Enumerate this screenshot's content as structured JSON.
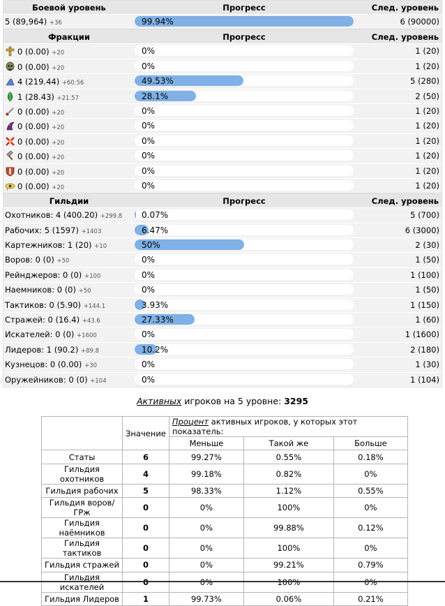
{
  "combat": {
    "headers": {
      "level": "Боевой уровень",
      "progress": "Прогресс",
      "next": "След. уровень"
    },
    "row": {
      "level": "5 (89,964)",
      "inc": "+36",
      "progress_text": "99.94%",
      "progress": 99.94,
      "next": "6 (90000)"
    }
  },
  "factions": {
    "headers": {
      "name": "Фракции",
      "progress": "Прогресс",
      "next": "След. уровень"
    },
    "rows": [
      {
        "icon": "knight-cross-icon",
        "level": "0 (0.00)",
        "inc": "+20",
        "progress_text": "0%",
        "progress": 0,
        "next": "1 (20)"
      },
      {
        "icon": "necromancer-skull-icon",
        "level": "0 (0.00)",
        "inc": "+20",
        "progress_text": "0%",
        "progress": 0,
        "next": "1 (20)"
      },
      {
        "icon": "wizard-hat-icon",
        "level": "4 (219.44)",
        "inc": "+60.56",
        "progress_text": "49.53%",
        "progress": 49.53,
        "next": "5 (280)"
      },
      {
        "icon": "elf-leaf-icon",
        "level": "1 (28.43)",
        "inc": "+21.57",
        "progress_text": "28.1%",
        "progress": 28.1,
        "next": "2 (50)"
      },
      {
        "icon": "barbarian-sword-icon",
        "level": "0 (0.00)",
        "inc": "+20",
        "progress_text": "0%",
        "progress": 0,
        "next": "1 (20)"
      },
      {
        "icon": "dark-elf-icon",
        "level": "0 (0.00)",
        "inc": "+20",
        "progress_text": "0%",
        "progress": 0,
        "next": "1 (20)"
      },
      {
        "icon": "demon-cross-icon",
        "level": "0 (0.00)",
        "inc": "+20",
        "progress_text": "0%",
        "progress": 0,
        "next": "1 (20)"
      },
      {
        "icon": "dwarf-hammer-icon",
        "level": "0 (0.00)",
        "inc": "+20",
        "progress_text": "0%",
        "progress": 0,
        "next": "1 (20)"
      },
      {
        "icon": "tribal-shield-icon",
        "level": "0 (0.00)",
        "inc": "+20",
        "progress_text": "0%",
        "progress": 0,
        "next": "1 (20)"
      },
      {
        "icon": "pharaoh-eye-icon",
        "level": "0 (0.00)",
        "inc": "+20",
        "progress_text": "0%",
        "progress": 0,
        "next": "1 (20)"
      }
    ]
  },
  "guilds": {
    "headers": {
      "name": "Гильдии",
      "progress": "Прогресс",
      "next": "След. уровень"
    },
    "rows": [
      {
        "name": "Охотников: 4 (400.20)",
        "inc": "+299.8",
        "progress_text": "0.07%",
        "progress": 0.07,
        "next": "5 (700)"
      },
      {
        "name": "Рабочих: 5 (1597)",
        "inc": "+1403",
        "progress_text": "6.47%",
        "progress": 6.47,
        "next": "6 (3000)"
      },
      {
        "name": "Картежников: 1 (20)",
        "inc": "+10",
        "progress_text": "50%",
        "progress": 50,
        "next": "2 (30)"
      },
      {
        "name": "Воров: 0 (0)",
        "inc": "+50",
        "progress_text": "0%",
        "progress": 0,
        "next": "1 (50)"
      },
      {
        "name": "Рейнджеров: 0 (0)",
        "inc": "+100",
        "progress_text": "0%",
        "progress": 0,
        "next": "1 (100)"
      },
      {
        "name": "Наемников: 0 (0)",
        "inc": "+50",
        "progress_text": "0%",
        "progress": 0,
        "next": "1 (50)"
      },
      {
        "name": "Тактиков: 0 (5.90)",
        "inc": "+144.1",
        "progress_text": "3.93%",
        "progress": 3.93,
        "next": "1 (150)"
      },
      {
        "name": "Стражей: 0 (16.4)",
        "inc": "+43.6",
        "progress_text": "27.33%",
        "progress": 27.33,
        "next": "1 (60)"
      },
      {
        "name": "Искателей: 0 (0)",
        "inc": "+1600",
        "progress_text": "0%",
        "progress": 0,
        "next": "1 (1600)"
      },
      {
        "name": "Лидеров: 1 (90.2)",
        "inc": "+89.8",
        "progress_text": "10.2%",
        "progress": 10.2,
        "next": "2 (180)"
      },
      {
        "name": "Кузнецов: 0 (0.00)",
        "inc": "+30",
        "progress_text": "0%",
        "progress": 0,
        "next": "1 (30)"
      },
      {
        "name": "Оружейников: 0 (0)",
        "inc": "+104",
        "progress_text": "0%",
        "progress": 0,
        "next": "1 (104)"
      }
    ]
  },
  "active": {
    "link": "Активных",
    "text": " игроков на 5 уровне: ",
    "count": "3295"
  },
  "stats": {
    "value_header": "Значение",
    "percent_link": "Процент",
    "percent_text": " активных игроков, у которых этот показатель:",
    "cols": [
      "Меньше",
      "Такой же",
      "Больше"
    ],
    "rows": [
      {
        "name": "Статы",
        "value": "6",
        "less": "99.27%",
        "same": "0.55%",
        "more": "0.18%"
      },
      {
        "name": "Гильдия охотников",
        "value": "4",
        "less": "99.18%",
        "same": "0.82%",
        "more": "0%"
      },
      {
        "name": "Гильдия рабочих",
        "value": "5",
        "less": "98.33%",
        "same": "1.12%",
        "more": "0.55%"
      },
      {
        "name": "Гильдия воров/ГРж",
        "value": "0",
        "less": "0%",
        "same": "100%",
        "more": "0%"
      },
      {
        "name": "Гильдия наёмников",
        "value": "0",
        "less": "0%",
        "same": "99.88%",
        "more": "0.12%"
      },
      {
        "name": "Гильдия тактиков",
        "value": "0",
        "less": "0%",
        "same": "100%",
        "more": "0%"
      },
      {
        "name": "Гильдия стражей",
        "value": "0",
        "less": "0%",
        "same": "99.21%",
        "more": "0.79%"
      },
      {
        "name": "Гильдия искателей",
        "value": "0",
        "less": "0%",
        "same": "100%",
        "more": "0%"
      },
      {
        "name": "Гильдия Лидеров",
        "value": "1",
        "less": "99.73%",
        "same": "0.06%",
        "more": "0.21%"
      }
    ]
  },
  "colors": {
    "bar": "#7fb0e6",
    "row_bg": "#f2f2f2",
    "header_bg": "#e6e6e6",
    "link": "#1a3fa0"
  }
}
